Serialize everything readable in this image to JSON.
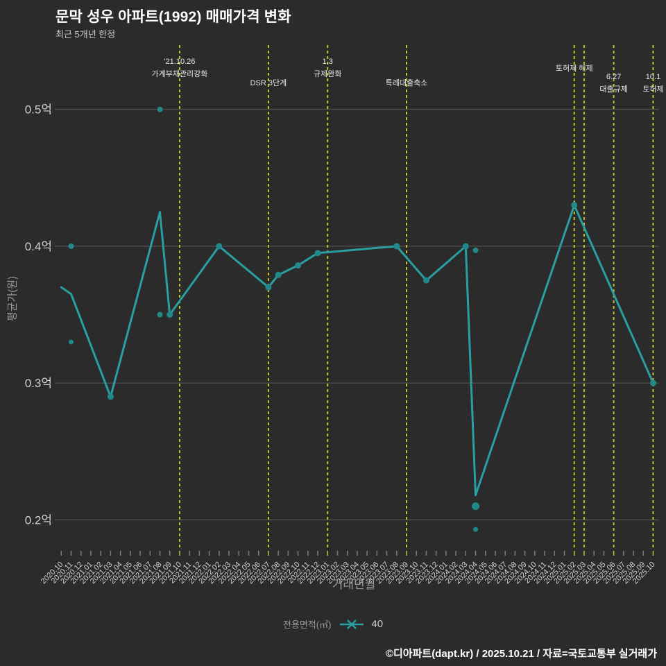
{
  "header": {
    "title": "문막 성우 아파트(1992) 매매가격 변화",
    "subtitle": "최근 5개년 한정"
  },
  "axes": {
    "y_title": "평균가(원)",
    "x_title": "거래년월"
  },
  "legend": {
    "label": "전용면적(㎡)",
    "series_name": "40"
  },
  "footer": {
    "credit": "©디아파트(dapt.kr) / 2025.10.21 / 자료=국토교통부 실거래가"
  },
  "colors": {
    "background": "#2b2b2b",
    "series_line": "#2a9fa1",
    "series_marker": "#21898b",
    "grid": "#5a5a5a",
    "event_line": "#c5c528",
    "tick": "#7d7d7d",
    "tick_label": "#d2d2d2",
    "annotation": "#e9e9e9",
    "title": "#ffffff"
  },
  "chart_data": {
    "type": "line",
    "title": "문막 성우 아파트(1992) 매매가격 변화",
    "subtitle": "최근 5개년 한정",
    "xlabel": "거래년월",
    "ylabel": "평균가(원)",
    "unit": "억원",
    "grid": "horizontal",
    "legend_position": "bottom-center",
    "y_axis": {
      "range": [
        0.177,
        0.547
      ],
      "ticks": [
        {
          "value": 0.5,
          "label": "0.5억"
        },
        {
          "value": 0.4,
          "label": "0.4억"
        },
        {
          "value": 0.3,
          "label": "0.3억"
        },
        {
          "value": 0.2,
          "label": "0.2억"
        }
      ]
    },
    "x": [
      "2020.10",
      "2020.11",
      "2020.12",
      "2021.01",
      "2021.02",
      "2021.03",
      "2021.04",
      "2021.05",
      "2021.06",
      "2021.07",
      "2021.08",
      "2021.09",
      "2021.10",
      "2021.11",
      "2021.12",
      "2022.01",
      "2022.02",
      "2022.03",
      "2022.04",
      "2022.05",
      "2022.06",
      "2022.07",
      "2022.08",
      "2022.09",
      "2022.10",
      "2022.11",
      "2022.12",
      "2023.01",
      "2023.02",
      "2023.03",
      "2023.04",
      "2023.05",
      "2023.06",
      "2023.07",
      "2023.08",
      "2023.09",
      "2023.10",
      "2023.11",
      "2023.12",
      "2024.01",
      "2024.02",
      "2024.03",
      "2024.04",
      "2024.05",
      "2024.06",
      "2024.07",
      "2024.08",
      "2024.09",
      "2024.10",
      "2024.11",
      "2024.12",
      "2025.01",
      "2025.02",
      "2025.03",
      "2025.04",
      "2025.05",
      "2025.06",
      "2025.07",
      "2025.08",
      "2025.09",
      "2025.10"
    ],
    "series": [
      {
        "name": "40",
        "points": [
          {
            "month": "2020.10",
            "avg": 0.37,
            "marker": false
          },
          {
            "month": "2020.11",
            "avg": 0.365,
            "marker": false
          },
          {
            "month": "2021.03",
            "avg": 0.29,
            "marker": true
          },
          {
            "month": "2021.08",
            "avg": 0.425,
            "marker": false
          },
          {
            "month": "2021.09",
            "avg": 0.35,
            "marker": true
          },
          {
            "month": "2022.02",
            "avg": 0.4,
            "marker": true
          },
          {
            "month": "2022.07",
            "avg": 0.37,
            "marker": true
          },
          {
            "month": "2022.08",
            "avg": 0.379,
            "marker": true
          },
          {
            "month": "2022.10",
            "avg": 0.386,
            "marker": true
          },
          {
            "month": "2022.12",
            "avg": 0.395,
            "marker": true
          },
          {
            "month": "2023.08",
            "avg": 0.4,
            "marker": true
          },
          {
            "month": "2023.11",
            "avg": 0.375,
            "marker": true
          },
          {
            "month": "2024.03",
            "avg": 0.4,
            "marker": true
          },
          {
            "month": "2024.04",
            "avg": 0.218,
            "marker": false
          },
          {
            "month": "2025.02",
            "avg": 0.43,
            "marker": true
          },
          {
            "month": "2025.10",
            "avg": 0.3,
            "marker": true
          }
        ]
      }
    ],
    "transactions": [
      {
        "month": "2020.11",
        "price": 0.4,
        "size": "normal"
      },
      {
        "month": "2020.11",
        "price": 0.33,
        "size": "small"
      },
      {
        "month": "2021.08",
        "price": 0.5,
        "size": "normal"
      },
      {
        "month": "2021.08",
        "price": 0.35,
        "size": "normal"
      },
      {
        "month": "2024.04",
        "price": 0.397,
        "size": "normal"
      },
      {
        "month": "2024.04",
        "price": 0.21,
        "size": "large"
      },
      {
        "month": "2024.04",
        "price": 0.193,
        "size": "small"
      }
    ],
    "events": [
      {
        "month": "2021.10",
        "lines": [
          "'21.10.26",
          "가계부채관리강화"
        ],
        "line_ys": [
          92,
          110
        ]
      },
      {
        "month": "2022.07",
        "lines": [
          "DSR 3단계"
        ],
        "line_ys": [
          123
        ]
      },
      {
        "month": "2023.01",
        "lines": [
          "1.3",
          "규제완화"
        ],
        "line_ys": [
          92,
          110
        ]
      },
      {
        "month": "2023.09",
        "lines": [
          "특례대출축소"
        ],
        "line_ys": [
          123
        ]
      },
      {
        "month": "2025.02",
        "lines": [
          "토허제 해제"
        ],
        "line_ys": [
          102
        ]
      },
      {
        "month": "2025.03",
        "lines": [],
        "line_ys": []
      },
      {
        "month": "2025.06",
        "lines": [
          "6.27",
          "대출규제"
        ],
        "line_ys": [
          114,
          132
        ]
      },
      {
        "month": "2025.10",
        "lines": [
          "10.1",
          "토허제"
        ],
        "line_ys": [
          114,
          132
        ]
      }
    ]
  }
}
